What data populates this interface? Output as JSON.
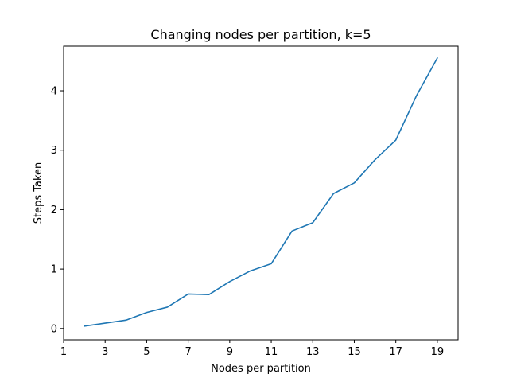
{
  "chart_data": {
    "type": "line",
    "title": "Changing nodes per partition, k=5",
    "xlabel": "Nodes per partition",
    "ylabel": "Steps Taken",
    "xlim": [
      1,
      20
    ],
    "ylim": [
      -0.19,
      4.75
    ],
    "xticks": [
      1,
      3,
      5,
      7,
      9,
      11,
      13,
      15,
      17,
      19
    ],
    "yticks": [
      0,
      1,
      2,
      3,
      4
    ],
    "grid": false,
    "series": [
      {
        "color": "#1f77b4",
        "x": [
          2,
          3,
          4,
          5,
          6,
          7,
          8,
          9,
          10,
          11,
          12,
          13,
          14,
          15,
          16,
          17,
          18,
          19
        ],
        "y": [
          0.04,
          0.09,
          0.14,
          0.27,
          0.36,
          0.58,
          0.57,
          0.79,
          0.97,
          1.09,
          1.64,
          1.78,
          2.27,
          2.45,
          2.84,
          3.17,
          3.92,
          4.55
        ]
      }
    ]
  }
}
